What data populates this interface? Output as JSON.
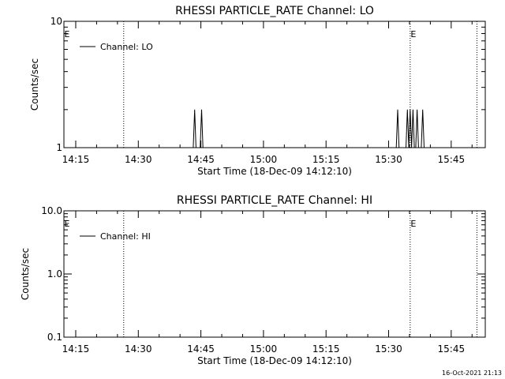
{
  "footer": {
    "timestamp": "16-Oct-2021 21:13"
  },
  "chart_data": [
    {
      "type": "line",
      "title": "RHESSI PARTICLE_RATE Channel: LO",
      "xlabel": "Start Time (18-Dec-09 14:12:10)",
      "ylabel": "Counts/sec",
      "yscale": "log",
      "ylim": [
        1,
        10
      ],
      "xlim": [
        "14:12:10",
        "15:53:10"
      ],
      "x_ticks": [
        "14:15",
        "14:30",
        "14:45",
        "15:00",
        "15:15",
        "15:30",
        "15:45"
      ],
      "y_ticks": [
        "1",
        "10"
      ],
      "legend": {
        "entries": [
          "Channel: LO"
        ],
        "position": "top-left"
      },
      "vlines": [
        "14:26:30",
        "15:35:10",
        "15:51:10"
      ],
      "annotations": [
        "E",
        "E"
      ],
      "series": [
        {
          "name": "Channel: LO",
          "x": [
            "14:43:10",
            "14:43:30",
            "14:43:50",
            "14:44:10",
            "14:44:30",
            "14:44:50",
            "14:45:10",
            "14:45:30",
            "15:31:50",
            "15:32:10",
            "15:32:30",
            "15:32:50",
            "15:34:10",
            "15:34:30",
            "15:34:50",
            "15:35:10",
            "15:35:30",
            "15:35:50",
            "15:36:10",
            "15:36:30",
            "15:36:50",
            "15:37:10",
            "15:37:30",
            "15:37:50",
            "15:38:10",
            "15:38:30",
            "15:38:50"
          ],
          "y": [
            1,
            2,
            1,
            1,
            1,
            1,
            2,
            1,
            1,
            2,
            1,
            1,
            1,
            2,
            1,
            2,
            1,
            2,
            1,
            1,
            2,
            1,
            1,
            1,
            2,
            1,
            1
          ]
        }
      ]
    },
    {
      "type": "line",
      "title": "RHESSI PARTICLE_RATE Channel: HI",
      "xlabel": "Start Time (18-Dec-09 14:12:10)",
      "ylabel": "Counts/sec",
      "yscale": "log",
      "ylim": [
        0.1,
        10
      ],
      "xlim": [
        "14:12:10",
        "15:53:10"
      ],
      "x_ticks": [
        "14:15",
        "14:30",
        "14:45",
        "15:00",
        "15:15",
        "15:30",
        "15:45"
      ],
      "y_ticks": [
        "0.1",
        "1.0",
        "10.0"
      ],
      "legend": {
        "entries": [
          "Channel: HI"
        ],
        "position": "top-left"
      },
      "vlines": [
        "14:26:30",
        "15:35:10",
        "15:51:10"
      ],
      "annotations": [
        "E",
        "E"
      ],
      "series": [
        {
          "name": "Channel: HI",
          "x": [],
          "y": []
        }
      ]
    }
  ]
}
